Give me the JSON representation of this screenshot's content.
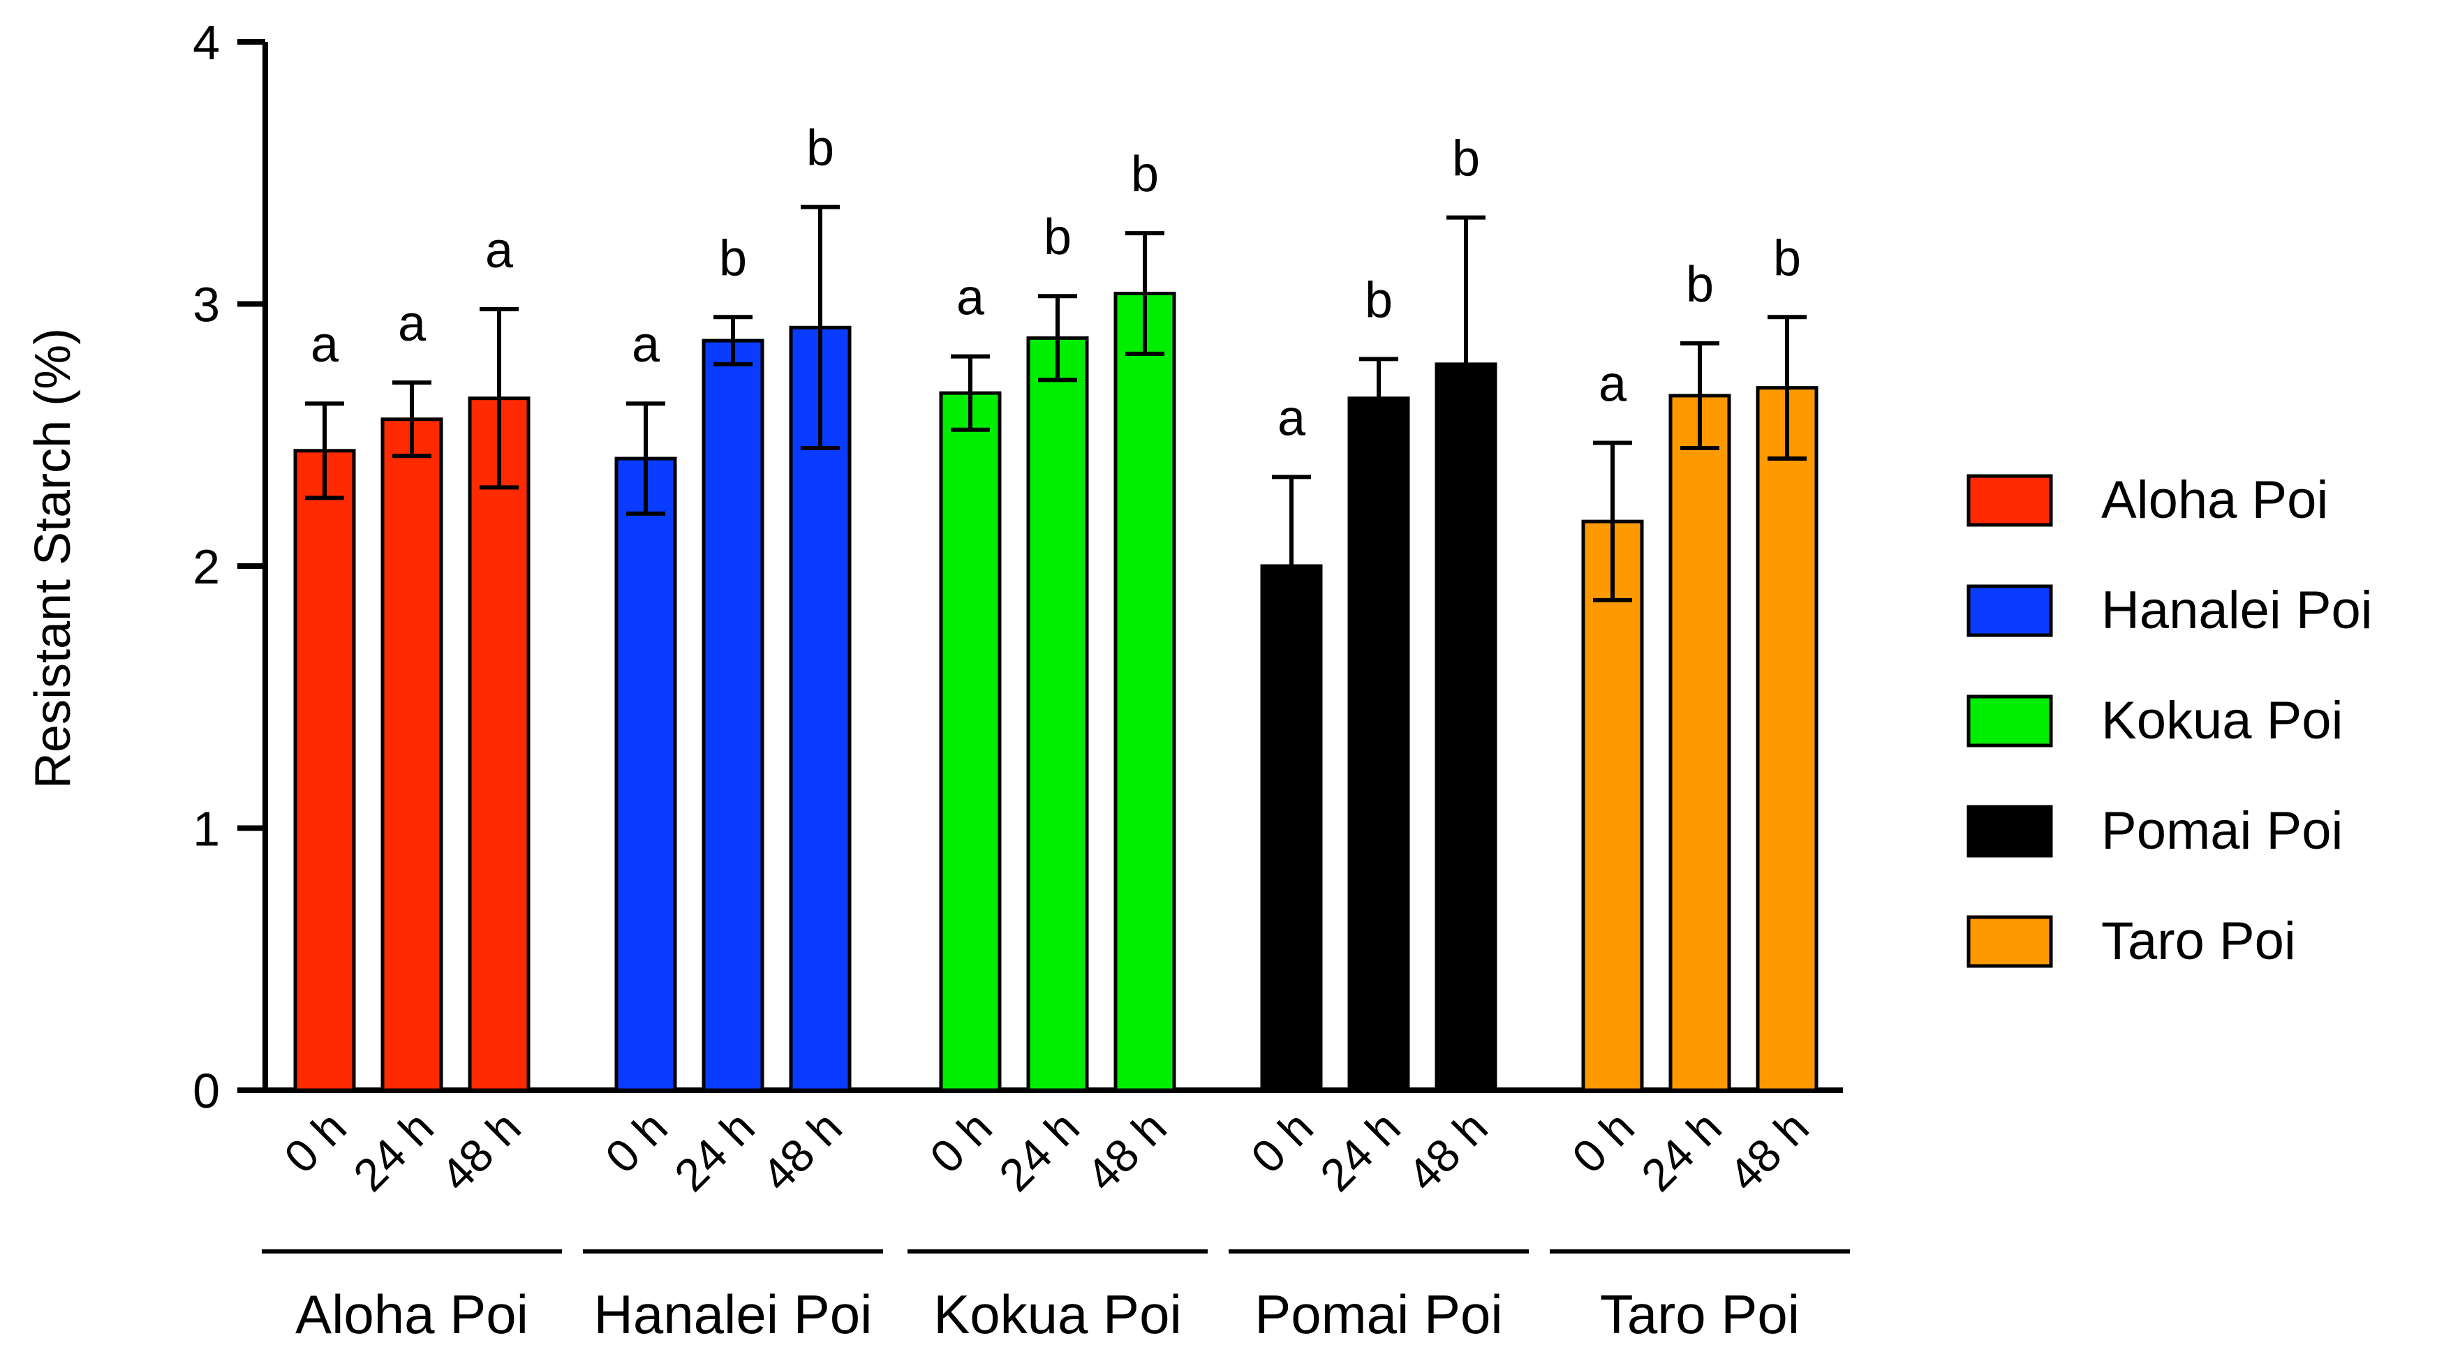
{
  "chart_data": {
    "type": "bar",
    "ylabel": "Resistant Starch (%)",
    "ylim": [
      0,
      4
    ],
    "yticks": [
      "0",
      "1",
      "2",
      "3",
      "4"
    ],
    "grid": false,
    "legend_position": "right",
    "groups": [
      {
        "name": "Aloha Poi",
        "color": "#ff2a00",
        "categories": [
          "0 h",
          "24 h",
          "48 h"
        ],
        "values": [
          2.44,
          2.56,
          2.64
        ],
        "errors": [
          0.18,
          0.14,
          0.34
        ],
        "letters": [
          "a",
          "a",
          "a"
        ]
      },
      {
        "name": "Hanalei Poi",
        "color": "#0a3cff",
        "categories": [
          "0 h",
          "24 h",
          "48 h"
        ],
        "values": [
          2.41,
          2.86,
          2.91
        ],
        "errors": [
          0.21,
          0.09,
          0.46
        ],
        "letters": [
          "a",
          "b",
          "b"
        ]
      },
      {
        "name": "Kokua Poi",
        "color": "#00ee00",
        "categories": [
          "0 h",
          "24 h",
          "48 h"
        ],
        "values": [
          2.66,
          2.87,
          3.04
        ],
        "errors": [
          0.14,
          0.16,
          0.23
        ],
        "letters": [
          "a",
          "b",
          "b"
        ]
      },
      {
        "name": "Pomai Poi",
        "color": "#000000",
        "categories": [
          "0 h",
          "24 h",
          "48 h"
        ],
        "values": [
          2.0,
          2.64,
          2.77
        ],
        "errors": [
          0.34,
          0.15,
          0.56
        ],
        "letters": [
          "a",
          "b",
          "b"
        ]
      },
      {
        "name": "Taro Poi",
        "color": "#ff9900",
        "categories": [
          "0 h",
          "24 h",
          "48 h"
        ],
        "values": [
          2.17,
          2.65,
          2.68
        ],
        "errors": [
          0.3,
          0.2,
          0.27
        ],
        "letters": [
          "a",
          "b",
          "b"
        ]
      }
    ],
    "legend": [
      "Aloha Poi",
      "Hanalei Poi",
      "Kokua Poi",
      "Pomai Poi",
      "Taro Poi"
    ]
  }
}
